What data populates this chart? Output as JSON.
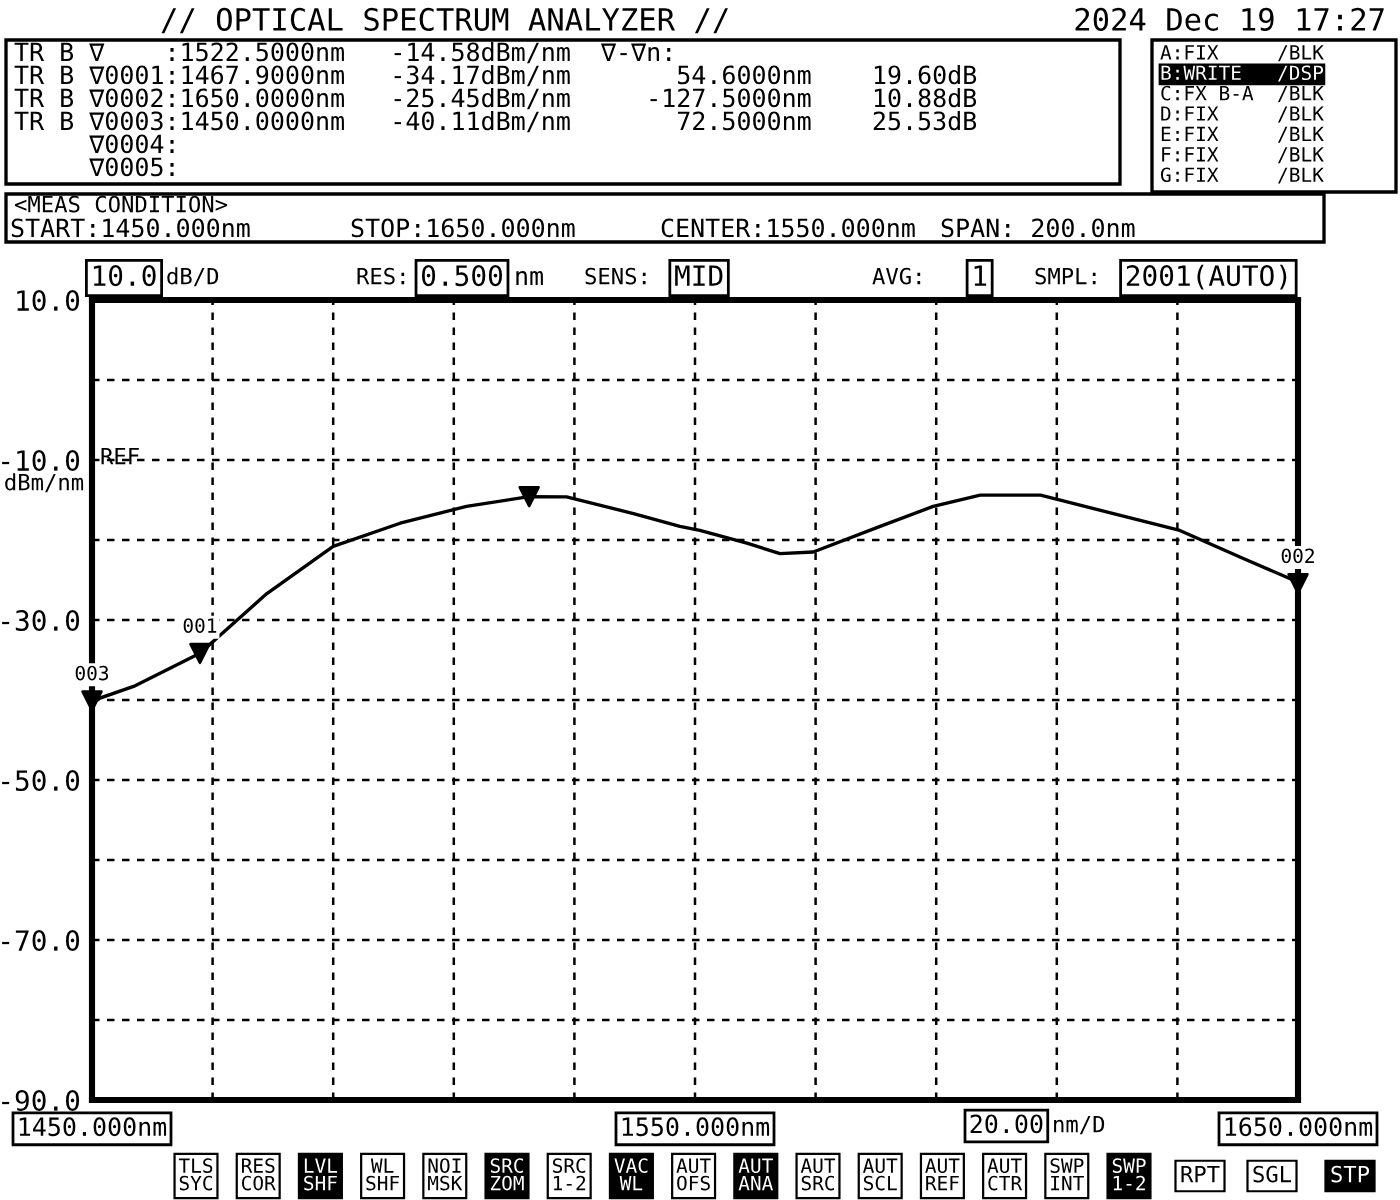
{
  "chart_data": {
    "type": "line",
    "title": "// OPTICAL SPECTRUM ANALYZER //",
    "subtitle": "2024 Dec 19 17:27",
    "ylabel": "dBm/nm",
    "series": [
      {
        "color": "#000000",
        "x": [
          1450,
          1456.9,
          1467.9,
          1479.0,
          1490.0,
          1501.1,
          1512.1,
          1522.5,
          1528.7,
          1539.8,
          1547.5,
          1550.8,
          1558.6,
          1564.1,
          1569.6,
          1580.7,
          1589.5,
          1597.3,
          1607.3,
          1619.4,
          1630.4,
          1641.5,
          1649.2,
          1650
        ],
        "values": [
          -40.11,
          -38.3,
          -34.17,
          -26.7,
          -20.8,
          -17.9,
          -15.8,
          -14.58,
          -14.6,
          -16.7,
          -18.3,
          -18.8,
          -20.4,
          -21.7,
          -21.5,
          -18.3,
          -15.8,
          -14.4,
          -14.4,
          -16.7,
          -18.8,
          -22.5,
          -25.0,
          -25.45
        ]
      },
      {
        "type": "scatter",
        "marker": "triangle",
        "color": "#000000",
        "x": [
          1522.5
        ],
        "values": [
          -14.58
        ]
      },
      {
        "type": "scatter",
        "marker": "triangle",
        "color": "#000000",
        "x": [
          1467.9,
          1650,
          1450
        ],
        "values": [
          -34.17,
          -25.45,
          -40.11
        ]
      }
    ],
    "xlim": [
      1450,
      1650
    ],
    "ylim": [
      -90,
      10
    ],
    "xticks": [
      {
        "value": 1450,
        "label": "1450.000nm"
      },
      {
        "value": 1470,
        "label": null
      },
      {
        "value": 1490,
        "label": null
      },
      {
        "value": 1510,
        "label": null
      },
      {
        "value": 1530,
        "label": null
      },
      {
        "value": 1550,
        "label": "1550.000nm"
      },
      {
        "value": 1570,
        "label": null
      },
      {
        "value": 1590,
        "label": null
      },
      {
        "value": 1610,
        "label": null
      },
      {
        "value": 1630,
        "label": null
      },
      {
        "value": 1650,
        "label": "1650.000nm"
      }
    ],
    "yticks": [
      {
        "value": 10,
        "label": "10.0"
      },
      {
        "value": 0,
        "label": null
      },
      {
        "value": -10,
        "label": "-10.0"
      },
      {
        "value": -20,
        "label": null
      },
      {
        "value": -30,
        "label": "-30.0"
      },
      {
        "value": -40,
        "label": null
      },
      {
        "value": -50,
        "label": "-50.0"
      },
      {
        "value": -60,
        "label": null
      },
      {
        "value": -70,
        "label": "-70.0"
      },
      {
        "value": -80,
        "label": null
      },
      {
        "value": -90,
        "label": "-90.0"
      }
    ],
    "grid": true,
    "marker": "none",
    "line_style": "solid",
    "annotations": [
      "TR B ∇    :1522.5000nm   -14.58dBm/nm  ∇-∇n:",
      "TR B ∇0001:1467.9000nm   -34.17dBm/nm       54.6000nm    19.60dB",
      "TR B ∇0002:1650.0000nm   -25.45dBm/nm     -127.5000nm    10.88dB",
      "TR B ∇0003:1450.0000nm   -40.11dBm/nm       72.5000nm    25.53dB",
      "     ∇0004:",
      "     ∇0005:",
      "A:FIX     /BLK",
      "B:WRITE   /DSP",
      "C:FX B-A  /BLK",
      "D:FIX     /BLK",
      "E:FIX     /BLK",
      "F:FIX     /BLK",
      "G:FIX     /BLK",
      "<MEAS CONDITION>",
      "START:1450.000nm",
      "STOP:1650.000nm",
      "CENTER:1550.000nm",
      "SPAN: 200.0nm",
      "10.0",
      "dB/D",
      "RES:",
      "0.500",
      "nm",
      "SENS:",
      "MID",
      "AVG:",
      "1",
      "SMPL:",
      "2001(AUTO)",
      "REF",
      "20.00",
      "nm/D",
      "TLS\nSYC",
      "RES\nCOR",
      "LVL\nSHF",
      "WL\nSHF",
      "NOI\nMSK",
      "SRC\nZOM",
      "SRC\n1-2",
      "VAC\nWL",
      "AUT\nOFS",
      "AUT\nANA",
      "AUT\nSRC",
      "AUT\nSCL",
      "AUT\nREF",
      "AUT\nCTR",
      "SWP\nINT",
      "SWP\n1-2",
      "RPT",
      "SGL",
      "STP",
      {
        "text": "001",
        "x": 1467.9,
        "y": -34.17
      },
      {
        "text": "002",
        "x": 1650,
        "y": -25.45
      },
      {
        "text": "003",
        "x": 1450,
        "y": -40.11
      }
    ]
  }
}
